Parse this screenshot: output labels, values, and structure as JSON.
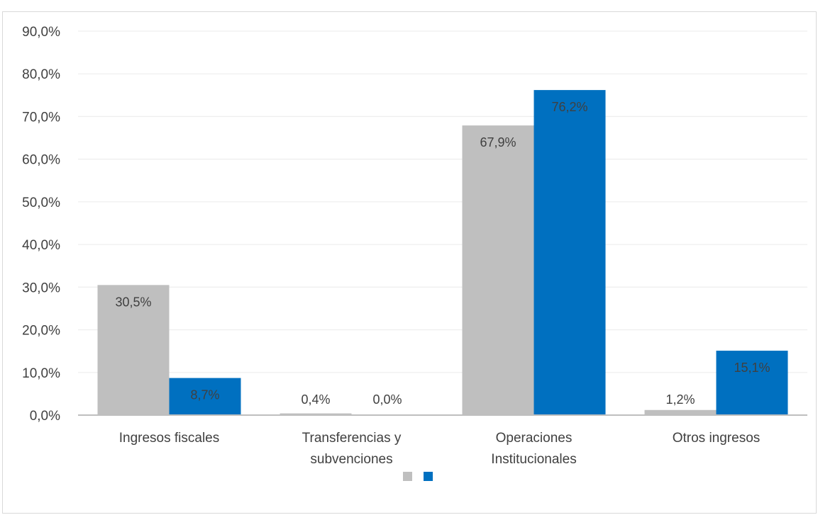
{
  "chart_data": {
    "type": "bar",
    "title": "",
    "xlabel": "",
    "ylabel": "",
    "categories": [
      [
        "Ingresos fiscales"
      ],
      [
        "Transferencias y",
        "subvenciones"
      ],
      [
        "Operaciones",
        "Institucionales"
      ],
      [
        "Otros ingresos"
      ]
    ],
    "series": [
      {
        "color": "#bfbfbf",
        "values": [
          30.5,
          0.4,
          67.9,
          1.2
        ],
        "labels": [
          "30,5%",
          "0,4%",
          "67,9%",
          "1,2%"
        ]
      },
      {
        "color": "#0070c0",
        "values": [
          8.7,
          0.0,
          76.2,
          15.1
        ],
        "labels": [
          "8,7%",
          "0,0%",
          "76,2%",
          "15,1%"
        ]
      }
    ],
    "ylim": [
      0,
      90
    ],
    "yticks": [
      "0,0%",
      "10,0%",
      "20,0%",
      "30,0%",
      "40,0%",
      "50,0%",
      "60,0%",
      "70,0%",
      "80,0%",
      "90,0%"
    ],
    "grid": true,
    "legend_position": "bottom"
  }
}
